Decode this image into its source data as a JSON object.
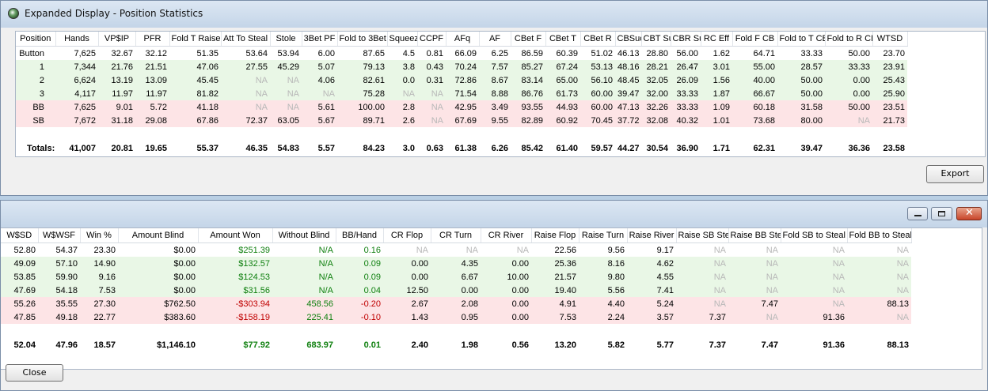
{
  "window_top": {
    "title": "Expanded Display - Position Statistics",
    "export_label": "Export",
    "columns": [
      "Position",
      "Hands",
      "VP$IP",
      "PFR",
      "Fold T Raise",
      "Att To Steal",
      "Stole",
      "3Bet PF",
      "Fold to 3Bet",
      "Squeeze",
      "CCPF",
      "AFq",
      "AF",
      "CBet F",
      "CBet T",
      "CBet R",
      "CBSuc",
      "CBT Suc",
      "CBR Suc",
      "RC Eff",
      "Fold F CB",
      "Fold to T CB",
      "Fold to R CB",
      "WTSD"
    ],
    "rows": [
      {
        "style": "white",
        "cells": [
          "Button",
          "7,625",
          "32.67",
          "32.12",
          "51.35",
          "53.64",
          "53.94",
          "6.00",
          "87.65",
          "4.5",
          "0.81",
          "66.09",
          "6.25",
          "86.59",
          "60.39",
          "51.02",
          "46.13",
          "28.80",
          "56.00",
          "1.62",
          "64.71",
          "33.33",
          "50.00",
          "23.70"
        ]
      },
      {
        "style": "green",
        "cells": [
          "1",
          "7,344",
          "21.76",
          "21.51",
          "47.06",
          "27.55",
          "45.29",
          "5.07",
          "79.13",
          "3.8",
          "0.43",
          "70.24",
          "7.57",
          "85.27",
          "67.24",
          "53.13",
          "48.16",
          "28.21",
          "26.47",
          "3.01",
          "55.00",
          "28.57",
          "33.33",
          "23.91"
        ]
      },
      {
        "style": "green",
        "cells": [
          "2",
          "6,624",
          "13.19",
          "13.09",
          "45.45",
          "NA",
          "NA",
          "4.06",
          "82.61",
          "0.0",
          "0.31",
          "72.86",
          "8.67",
          "83.14",
          "65.00",
          "56.10",
          "48.45",
          "32.05",
          "26.09",
          "1.56",
          "40.00",
          "50.00",
          "0.00",
          "25.43"
        ]
      },
      {
        "style": "green",
        "cells": [
          "3",
          "4,117",
          "11.97",
          "11.97",
          "81.82",
          "NA",
          "NA",
          "NA",
          "75.28",
          "NA",
          "NA",
          "71.54",
          "8.88",
          "86.76",
          "61.73",
          "60.00",
          "39.47",
          "32.00",
          "33.33",
          "1.87",
          "66.67",
          "50.00",
          "0.00",
          "25.90"
        ]
      },
      {
        "style": "red",
        "cells": [
          "BB",
          "7,625",
          "9.01",
          "5.72",
          "41.18",
          "NA",
          "NA",
          "5.61",
          "100.00",
          "2.8",
          "NA",
          "42.95",
          "3.49",
          "93.55",
          "44.93",
          "60.00",
          "47.13",
          "32.26",
          "33.33",
          "1.09",
          "60.18",
          "31.58",
          "50.00",
          "23.51"
        ]
      },
      {
        "style": "red",
        "cells": [
          "SB",
          "7,672",
          "31.18",
          "29.08",
          "67.86",
          "72.37",
          "63.05",
          "5.67",
          "89.71",
          "2.6",
          "NA",
          "67.69",
          "9.55",
          "82.89",
          "60.92",
          "70.45",
          "37.72",
          "32.08",
          "40.32",
          "1.01",
          "73.68",
          "80.00",
          "NA",
          "21.73"
        ]
      }
    ],
    "totals": [
      "Totals:",
      "41,007",
      "20.81",
      "19.65",
      "55.37",
      "46.35",
      "54.83",
      "5.57",
      "84.23",
      "3.0",
      "0.63",
      "61.38",
      "6.26",
      "85.42",
      "61.40",
      "59.57",
      "44.27",
      "30.54",
      "36.90",
      "1.71",
      "62.31",
      "39.47",
      "36.36",
      "23.58"
    ]
  },
  "window_bottom": {
    "close_label": "Close",
    "close_glyph": "✕",
    "columns": [
      "W$SD",
      "W$WSF",
      "Win %",
      "Amount Blind",
      "Amount Won",
      "Without Blind",
      "BB/Hand",
      "CR Flop",
      "CR Turn",
      "CR River",
      "Raise Flop",
      "Raise Turn",
      "Raise River",
      "Raise SB Steal",
      "Raise BB Steal",
      "Fold SB to Steal",
      "Fold BB to Steal"
    ],
    "rows": [
      {
        "style": "white",
        "cells": [
          "52.80",
          "54.37",
          "23.30",
          "$0.00",
          "$251.39",
          "N/A",
          "0.16",
          "NA",
          "NA",
          "NA",
          "22.56",
          "9.56",
          "9.17",
          "NA",
          "NA",
          "NA",
          "NA"
        ]
      },
      {
        "style": "green",
        "cells": [
          "49.09",
          "57.10",
          "14.90",
          "$0.00",
          "$132.57",
          "N/A",
          "0.09",
          "0.00",
          "4.35",
          "0.00",
          "25.36",
          "8.16",
          "4.62",
          "NA",
          "NA",
          "NA",
          "NA"
        ]
      },
      {
        "style": "green",
        "cells": [
          "53.85",
          "59.90",
          "9.16",
          "$0.00",
          "$124.53",
          "N/A",
          "0.09",
          "0.00",
          "6.67",
          "10.00",
          "21.57",
          "9.80",
          "4.55",
          "NA",
          "NA",
          "NA",
          "NA"
        ]
      },
      {
        "style": "green",
        "cells": [
          "47.69",
          "54.18",
          "7.53",
          "$0.00",
          "$31.56",
          "N/A",
          "0.04",
          "12.50",
          "0.00",
          "0.00",
          "19.40",
          "5.56",
          "7.41",
          "NA",
          "NA",
          "NA",
          "NA"
        ]
      },
      {
        "style": "red",
        "cells": [
          "55.26",
          "35.55",
          "27.30",
          "$762.50",
          "-$303.94",
          "458.56",
          "-0.20",
          "2.67",
          "2.08",
          "0.00",
          "4.91",
          "4.40",
          "5.24",
          "NA",
          "7.47",
          "NA",
          "88.13"
        ]
      },
      {
        "style": "red",
        "cells": [
          "47.85",
          "49.18",
          "22.77",
          "$383.60",
          "-$158.19",
          "225.41",
          "-0.10",
          "1.43",
          "0.95",
          "0.00",
          "7.53",
          "2.24",
          "3.57",
          "7.37",
          "NA",
          "91.36",
          "NA"
        ]
      }
    ],
    "totals": [
      "52.04",
      "47.96",
      "18.57",
      "$1,146.10",
      "$77.92",
      "683.97",
      "0.01",
      "2.40",
      "1.98",
      "0.56",
      "13.20",
      "5.82",
      "5.77",
      "7.37",
      "7.47",
      "91.36",
      "88.13"
    ]
  }
}
